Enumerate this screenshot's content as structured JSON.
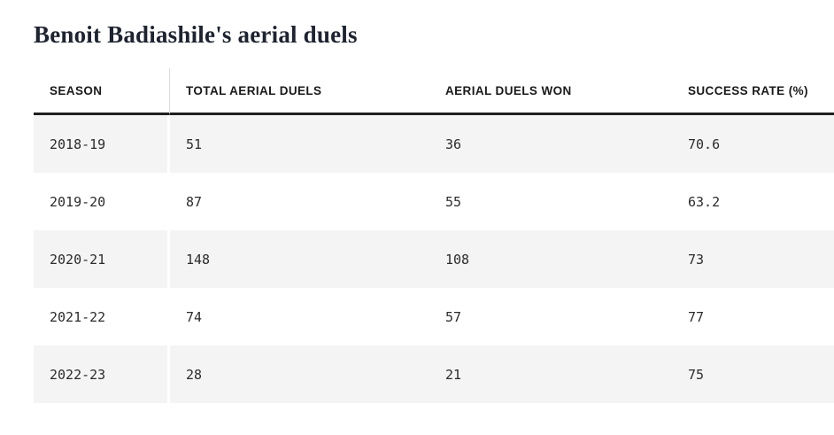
{
  "title": "Benoit Badiashile's aerial duels",
  "colors": {
    "title_text": "#1e2330",
    "header_rule": "#1f1f1f",
    "row_stripe": "#f4f4f4",
    "cell_text": "#2b2b2b"
  },
  "chart_data": {
    "type": "table",
    "title": "Benoit Badiashile's aerial duels",
    "columns": [
      "SEASON",
      "TOTAL AERIAL DUELS",
      "AERIAL DUELS WON",
      "SUCCESS RATE (%)"
    ],
    "rows": [
      [
        "2018-19",
        "51",
        "36",
        "70.6"
      ],
      [
        "2019-20",
        "87",
        "55",
        "63.2"
      ],
      [
        "2020-21",
        "148",
        "108",
        "73"
      ],
      [
        "2021-22",
        "74",
        "57",
        "77"
      ],
      [
        "2022-23",
        "28",
        "21",
        "75"
      ]
    ]
  }
}
